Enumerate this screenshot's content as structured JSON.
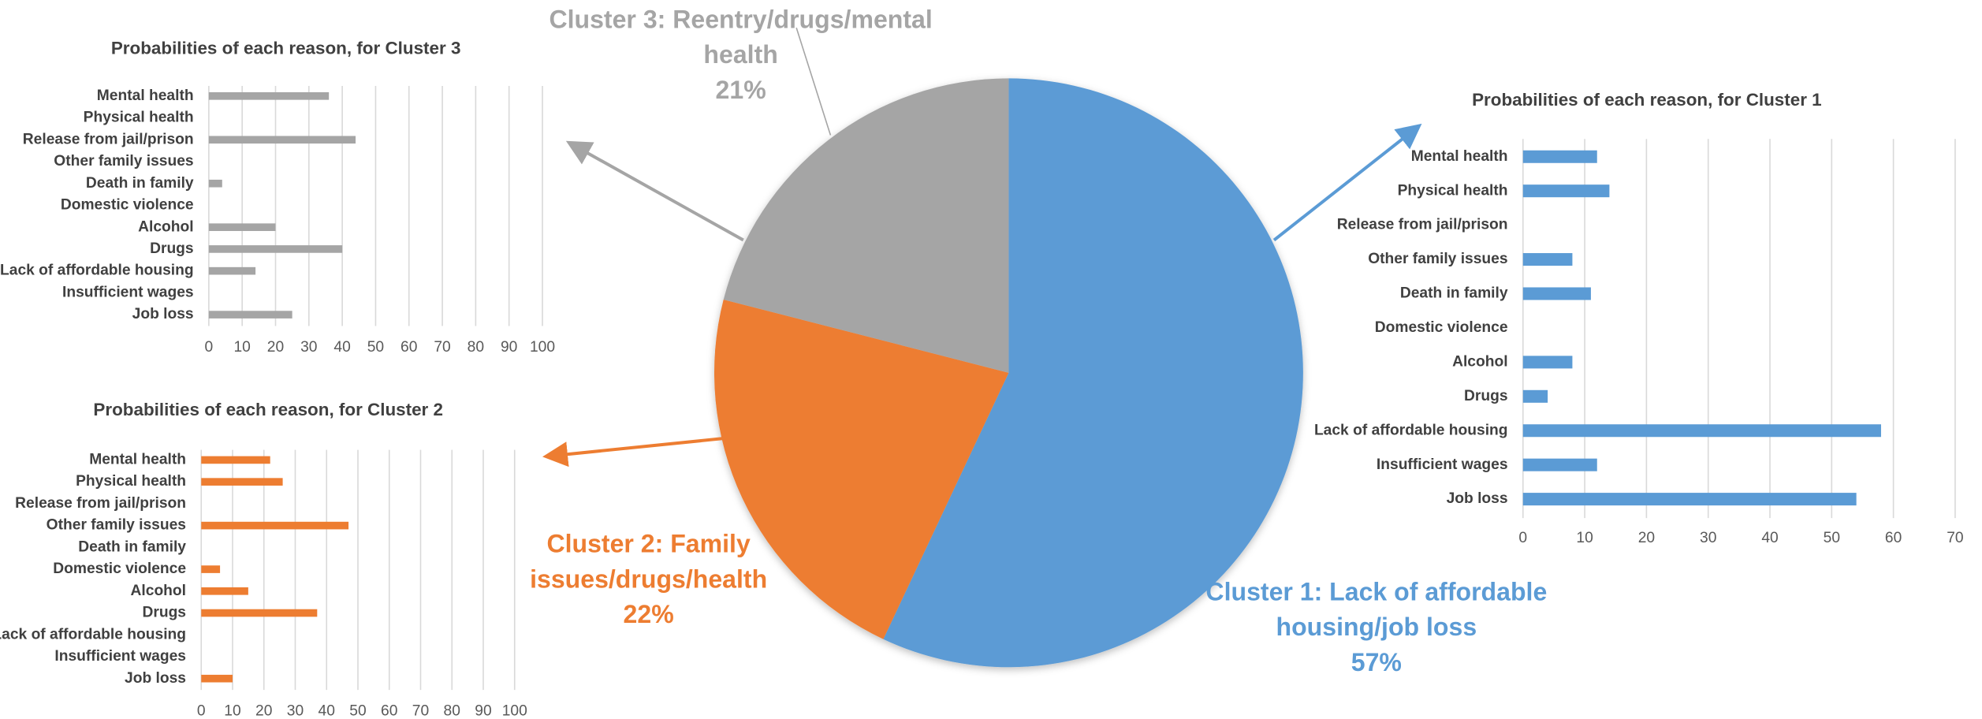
{
  "chart_data": [
    {
      "type": "pie",
      "categories": [
        "Cluster 1: Lack of affordable housing/job loss",
        "Cluster 2: Family issues/drugs/health",
        "Cluster 3: Reentry/drugs/mental health"
      ],
      "values": [
        57,
        22,
        21
      ],
      "value_labels": [
        "57%",
        "22%",
        "21%"
      ],
      "colors": [
        "#5b9bd5",
        "#ed7d31",
        "#a5a5a5"
      ]
    },
    {
      "type": "bar",
      "title": "Probabilities of each reason, for Cluster 3",
      "categories": [
        "Mental health",
        "Physical health",
        "Release from jail/prison",
        "Other family issues",
        "Death in family",
        "Domestic violence",
        "Alcohol",
        "Drugs",
        "Lack of affordable housing",
        "Insufficient wages",
        "Job loss"
      ],
      "values": [
        36,
        0,
        44,
        0,
        4,
        0,
        20,
        40,
        14,
        0,
        25
      ],
      "color": "#a5a5a5",
      "xlim": [
        0,
        100
      ],
      "xticks": [
        0,
        10,
        20,
        30,
        40,
        50,
        60,
        70,
        80,
        90,
        100
      ],
      "grid": true
    },
    {
      "type": "bar",
      "title": "Probabilities of each reason, for Cluster 2",
      "categories": [
        "Mental health",
        "Physical health",
        "Release from jail/prison",
        "Other family issues",
        "Death in family",
        "Domestic violence",
        "Alcohol",
        "Drugs",
        "Lack of affordable housing",
        "Insufficient wages",
        "Job loss"
      ],
      "values": [
        22,
        26,
        0,
        47,
        0,
        6,
        15,
        37,
        0,
        0,
        10
      ],
      "color": "#ed7d31",
      "xlim": [
        0,
        100
      ],
      "xticks": [
        0,
        10,
        20,
        30,
        40,
        50,
        60,
        70,
        80,
        90,
        100
      ],
      "grid": true
    },
    {
      "type": "bar",
      "title": "Probabilities of each reason, for Cluster 1",
      "categories": [
        "Mental health",
        "Physical health",
        "Release from jail/prison",
        "Other family issues",
        "Death in family",
        "Domestic violence",
        "Alcohol",
        "Drugs",
        "Lack of affordable housing",
        "Insufficient wages",
        "Job loss"
      ],
      "values": [
        12,
        14,
        0,
        8,
        11,
        0,
        8,
        4,
        58,
        12,
        54
      ],
      "color": "#5b9bd5",
      "xlim": [
        0,
        70
      ],
      "xticks": [
        0,
        10,
        20,
        30,
        40,
        50,
        60,
        70
      ],
      "grid": true
    }
  ]
}
